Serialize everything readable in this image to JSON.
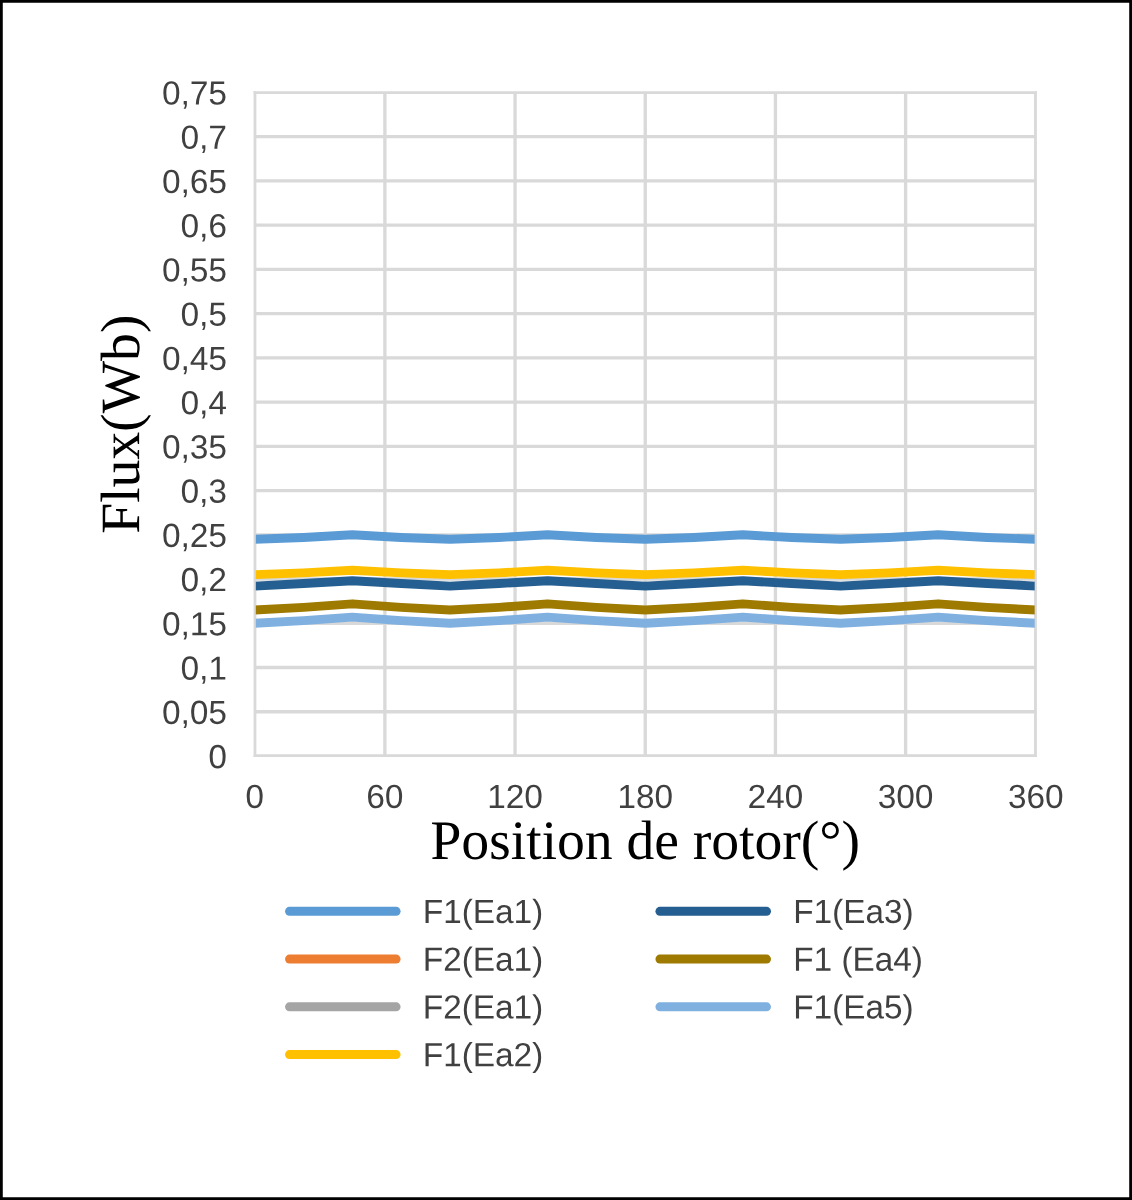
{
  "chart_data": {
    "type": "line",
    "xlabel": "Position de rotor(°)",
    "ylabel": "Flux(Wb)",
    "x": [
      0,
      22.5,
      45,
      67.5,
      90,
      112.5,
      135,
      157.5,
      180,
      202.5,
      225,
      247.5,
      270,
      292.5,
      315,
      337.5,
      360
    ],
    "xlim": [
      0,
      360
    ],
    "xticks": [
      0,
      60,
      120,
      180,
      240,
      300,
      360
    ],
    "ylim": [
      0,
      0.75
    ],
    "yticks": [
      0,
      {
        "value": 0.05,
        "label": "0,05"
      },
      {
        "value": 0.1,
        "label": "0,1"
      },
      {
        "value": 0.15,
        "label": "0,15"
      },
      {
        "value": 0.2,
        "label": "0,2"
      },
      {
        "value": 0.25,
        "label": "0,25"
      },
      {
        "value": 0.3,
        "label": "0,3"
      },
      {
        "value": 0.35,
        "label": "0,35"
      },
      {
        "value": 0.4,
        "label": "0,4"
      },
      {
        "value": 0.45,
        "label": "0,45"
      },
      {
        "value": 0.5,
        "label": "0,5"
      },
      {
        "value": 0.55,
        "label": "0,55"
      },
      {
        "value": 0.6,
        "label": "0,6"
      },
      {
        "value": 0.65,
        "label": "0,65"
      },
      {
        "value": 0.7,
        "label": "0,7"
      },
      {
        "value": 0.75,
        "label": "0,75"
      }
    ],
    "grid": true,
    "legend": "bottom",
    "marker": "none",
    "line_style": "solid",
    "series": [
      {
        "name": "F1(Ea1)",
        "color": "#5b9bd5",
        "values": [
          0.245,
          0.247,
          0.25,
          0.247,
          0.245,
          0.247,
          0.25,
          0.247,
          0.245,
          0.247,
          0.25,
          0.247,
          0.245,
          0.247,
          0.25,
          0.247,
          0.245
        ]
      },
      {
        "name": "F2(Ea1)",
        "color": "#ed7d31",
        "values": [
          null,
          null,
          null,
          null,
          null,
          null,
          null,
          null,
          null,
          null,
          null,
          null,
          null,
          null,
          null,
          null,
          null
        ]
      },
      {
        "name": "F2(Ea1)",
        "color": "#a5a5a5",
        "values": [
          null,
          null,
          null,
          null,
          null,
          null,
          null,
          null,
          null,
          null,
          null,
          null,
          null,
          null,
          null,
          null,
          null
        ]
      },
      {
        "name": "F1(Ea2)",
        "color": "#ffc000",
        "values": [
          0.205,
          0.207,
          0.21,
          0.207,
          0.205,
          0.207,
          0.21,
          0.207,
          0.205,
          0.207,
          0.21,
          0.207,
          0.205,
          0.207,
          0.21,
          0.207,
          0.205
        ]
      },
      {
        "name": "F1(Ea3)",
        "color": "#255e91",
        "values": [
          0.192,
          0.195,
          0.198,
          0.195,
          0.192,
          0.195,
          0.198,
          0.195,
          0.192,
          0.195,
          0.198,
          0.195,
          0.192,
          0.195,
          0.198,
          0.195,
          0.192
        ]
      },
      {
        "name": "F1 (Ea4)",
        "color": "#9e7a00",
        "values": [
          0.165,
          0.168,
          0.172,
          0.168,
          0.165,
          0.168,
          0.172,
          0.168,
          0.165,
          0.168,
          0.172,
          0.168,
          0.165,
          0.168,
          0.172,
          0.168,
          0.165
        ]
      },
      {
        "name": "F1(Ea5)",
        "color": "#7fb0e0",
        "values": [
          0.15,
          0.153,
          0.157,
          0.153,
          0.15,
          0.153,
          0.157,
          0.153,
          0.15,
          0.153,
          0.157,
          0.153,
          0.15,
          0.153,
          0.157,
          0.153,
          0.15
        ]
      }
    ]
  }
}
